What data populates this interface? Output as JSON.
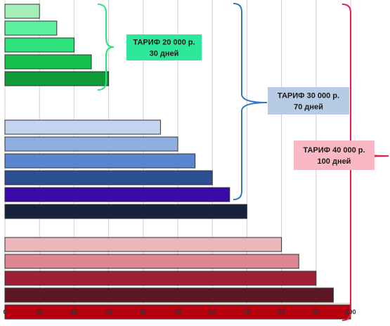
{
  "chart_data": {
    "type": "bar",
    "orientation": "horizontal",
    "xlim": [
      0,
      100
    ],
    "x_ticks": [
      "0",
      "10",
      "20",
      "30",
      "40",
      "50",
      "60",
      "70",
      "80",
      "90",
      "100"
    ],
    "grid": true,
    "groups": [
      {
        "values": [
          10,
          15,
          20,
          25,
          30
        ],
        "colors": [
          "#a4f0b8",
          "#5ef2a0",
          "#2ee37a",
          "#18c04e",
          "#0e9a36"
        ],
        "bracket_color": "#2ee37a",
        "label": {
          "line1": "ТАРИФ 20 000 р.",
          "line2": "30 дней",
          "bg": "#2de89a"
        }
      },
      {
        "values": [
          0,
          45,
          50,
          55,
          60,
          65,
          70
        ],
        "colors": [
          "#c4d4ef",
          "#c4d4ef",
          "#8eaee0",
          "#5a86cf",
          "#2c4f93",
          "#3a0aa8",
          "#17233d"
        ],
        "bracket_color": "#2c75c8",
        "label": {
          "line1": "ТАРИФ 30 000 р.",
          "line2": "70 дней",
          "bg": "#b8cbe4"
        }
      },
      {
        "values": [
          0,
          80,
          85,
          90,
          95,
          100
        ],
        "colors": [
          "#ecb6bc",
          "#ecb6bc",
          "#dc8791",
          "#9e1f36",
          "#5c1624",
          "#b8000e"
        ],
        "bracket_color": "#ec1c46",
        "label": {
          "line1": "ТАРИФ 40 000 р.",
          "line2": "100 дней",
          "bg": "#f9b8c4"
        }
      }
    ]
  }
}
